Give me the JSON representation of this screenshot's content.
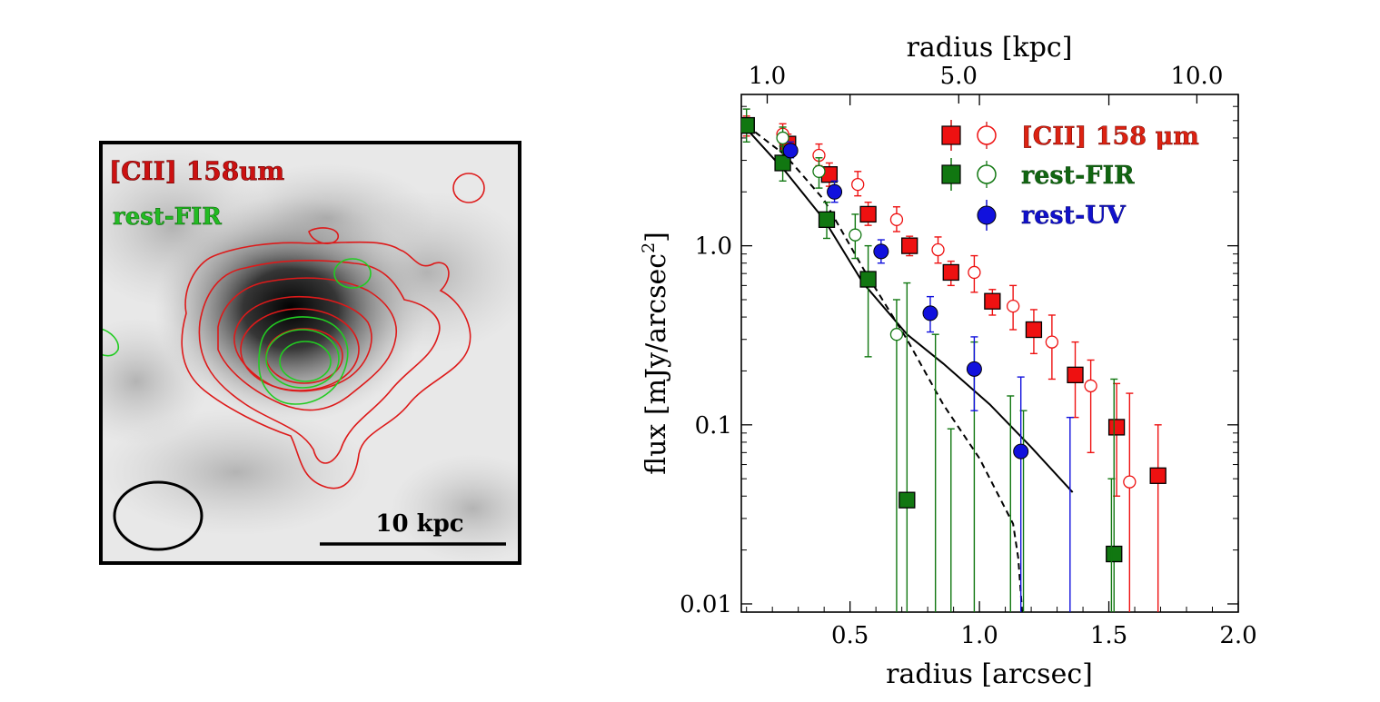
{
  "image_panel": {
    "labels": [
      {
        "text": "[CII] 158um",
        "color": "#cc1111"
      },
      {
        "text": "rest-FIR",
        "color": "#22bb22"
      }
    ],
    "scale_bar_label": "10 kpc"
  },
  "chart_data": {
    "type": "scatter",
    "xlabel": "radius  [arcsec]",
    "ylabel": "flux  [mJy/arcsec",
    "ylabel_sup": "2",
    "ylabel_end": "]",
    "top_xlabel": "radius  [kpc]",
    "xlim": [
      0.08,
      2.0
    ],
    "ylim": [
      0.009,
      7.0
    ],
    "yscale": "log",
    "x_ticks": [
      0.5,
      1.0,
      1.5,
      2.0
    ],
    "x_tick_labels": [
      "0.5",
      "1.0",
      "1.5",
      "2.0"
    ],
    "y_ticks": [
      0.01,
      0.1,
      1.0
    ],
    "y_tick_labels": [
      "0.01",
      "0.1",
      "1.0"
    ],
    "top_ticks": [
      {
        "label": "1.0",
        "arcsec": 0.18
      },
      {
        "label": "5.0",
        "arcsec": 0.92
      },
      {
        "label": "10.0",
        "arcsec": 1.84
      }
    ],
    "legend": {
      "position": "top-right",
      "entries": [
        {
          "label": "[CII]  158 μm",
          "color": "#cc1111"
        },
        {
          "label": "rest-FIR",
          "color": "#116611"
        },
        {
          "label": "rest-UV",
          "color": "#1111cc"
        }
      ]
    },
    "series": [
      {
        "marker": "square",
        "filled": true,
        "color": "#ee1111",
        "points": [
          {
            "x": 0.1,
            "y": 4.7,
            "lo": 4.1,
            "hi": 5.3
          },
          {
            "x": 0.26,
            "y": 3.7,
            "lo": 3.2,
            "hi": 4.2
          },
          {
            "x": 0.42,
            "y": 2.5,
            "lo": 2.15,
            "hi": 2.9
          },
          {
            "x": 0.57,
            "y": 1.5,
            "lo": 1.3,
            "hi": 1.75
          },
          {
            "x": 0.73,
            "y": 1.0,
            "lo": 0.88,
            "hi": 1.13
          },
          {
            "x": 0.89,
            "y": 0.71,
            "lo": 0.6,
            "hi": 0.82
          },
          {
            "x": 1.05,
            "y": 0.49,
            "lo": 0.41,
            "hi": 0.57
          },
          {
            "x": 1.21,
            "y": 0.34,
            "lo": 0.25,
            "hi": 0.44
          },
          {
            "x": 1.37,
            "y": 0.19,
            "lo": 0.11,
            "hi": 0.29
          },
          {
            "x": 1.53,
            "y": 0.097,
            "lo": 0.04,
            "hi": 0.17
          },
          {
            "x": 1.69,
            "y": 0.052,
            "lo": 0.009,
            "hi": 0.1
          }
        ]
      },
      {
        "marker": "circle",
        "filled": false,
        "color": "#ee1111",
        "points": [
          {
            "x": 0.24,
            "y": 4.2,
            "lo": 3.7,
            "hi": 4.8
          },
          {
            "x": 0.38,
            "y": 3.2,
            "lo": 2.8,
            "hi": 3.7
          },
          {
            "x": 0.53,
            "y": 2.2,
            "lo": 1.9,
            "hi": 2.6
          },
          {
            "x": 0.68,
            "y": 1.4,
            "lo": 1.2,
            "hi": 1.65
          },
          {
            "x": 0.84,
            "y": 0.95,
            "lo": 0.8,
            "hi": 1.12
          },
          {
            "x": 0.98,
            "y": 0.71,
            "lo": 0.55,
            "hi": 0.88
          },
          {
            "x": 1.13,
            "y": 0.46,
            "lo": 0.34,
            "hi": 0.6
          },
          {
            "x": 1.28,
            "y": 0.29,
            "lo": 0.18,
            "hi": 0.41
          },
          {
            "x": 1.43,
            "y": 0.165,
            "lo": 0.07,
            "hi": 0.23
          },
          {
            "x": 1.58,
            "y": 0.048,
            "lo": 0.009,
            "hi": 0.15
          }
        ]
      },
      {
        "marker": "square",
        "filled": true,
        "color": "#117711",
        "points": [
          {
            "x": 0.1,
            "y": 4.7,
            "lo": 3.8,
            "hi": 5.8
          },
          {
            "x": 0.24,
            "y": 2.9,
            "lo": 2.3,
            "hi": 3.6
          },
          {
            "x": 0.41,
            "y": 1.4,
            "lo": 1.1,
            "hi": 1.75
          },
          {
            "x": 0.57,
            "y": 0.65,
            "lo": 0.24,
            "hi": 1.0
          },
          {
            "x": 0.72,
            "y": 0.038,
            "lo": 0.009,
            "hi": 0.62
          },
          {
            "x": 1.52,
            "y": 0.019,
            "lo": 0.009,
            "hi": 0.18
          }
        ]
      },
      {
        "marker": "circle",
        "filled": false,
        "color": "#117711",
        "points": [
          {
            "x": 0.24,
            "y": 4.0,
            "lo": 3.4,
            "hi": 4.6
          },
          {
            "x": 0.38,
            "y": 2.6,
            "lo": 2.1,
            "hi": 3.1
          },
          {
            "x": 0.52,
            "y": 1.15,
            "lo": 0.85,
            "hi": 1.5
          },
          {
            "x": 0.68,
            "y": 0.32,
            "lo": 0.009,
            "hi": 0.5
          },
          {
            "x": 0.83,
            "y": 0.009,
            "lo": 0.009,
            "hi": 0.32
          },
          {
            "x": 0.89,
            "y": 0.009,
            "lo": 0.009,
            "hi": 0.095
          },
          {
            "x": 0.98,
            "y": 0.009,
            "lo": 0.009,
            "hi": 0.29
          },
          {
            "x": 1.12,
            "y": 0.009,
            "lo": 0.009,
            "hi": 0.145
          },
          {
            "x": 1.17,
            "y": 0.009,
            "lo": 0.009,
            "hi": 0.12
          },
          {
            "x": 1.51,
            "y": 0.009,
            "lo": 0.009,
            "hi": 0.05
          }
        ]
      },
      {
        "marker": "circle",
        "filled": true,
        "color": "#1111dd",
        "points": [
          {
            "x": 0.27,
            "y": 3.4,
            "lo": 3.1,
            "hi": 3.8
          },
          {
            "x": 0.44,
            "y": 2.0,
            "lo": 1.75,
            "hi": 2.3
          },
          {
            "x": 0.62,
            "y": 0.93,
            "lo": 0.8,
            "hi": 1.08
          },
          {
            "x": 0.81,
            "y": 0.42,
            "lo": 0.33,
            "hi": 0.52
          },
          {
            "x": 0.98,
            "y": 0.205,
            "lo": 0.12,
            "hi": 0.31
          },
          {
            "x": 1.16,
            "y": 0.071,
            "lo": 0.009,
            "hi": 0.185
          },
          {
            "x": 1.35,
            "y": 0.009,
            "lo": 0.009,
            "hi": 0.11
          }
        ]
      }
    ],
    "lines": [
      {
        "style": "solid",
        "color": "#000000",
        "x": [
          0.1,
          0.25,
          0.4,
          0.55,
          0.72,
          0.86,
          1.04,
          1.2,
          1.36
        ],
        "y": [
          4.5,
          2.6,
          1.4,
          0.62,
          0.32,
          0.22,
          0.13,
          0.075,
          0.042
        ]
      },
      {
        "style": "dashed",
        "color": "#000000",
        "x": [
          0.1,
          0.25,
          0.4,
          0.55,
          0.72,
          0.86,
          1.0,
          1.13,
          1.15,
          1.165
        ],
        "y": [
          4.7,
          3.2,
          1.8,
          0.75,
          0.3,
          0.13,
          0.065,
          0.028,
          0.018,
          0.009
        ]
      }
    ]
  }
}
